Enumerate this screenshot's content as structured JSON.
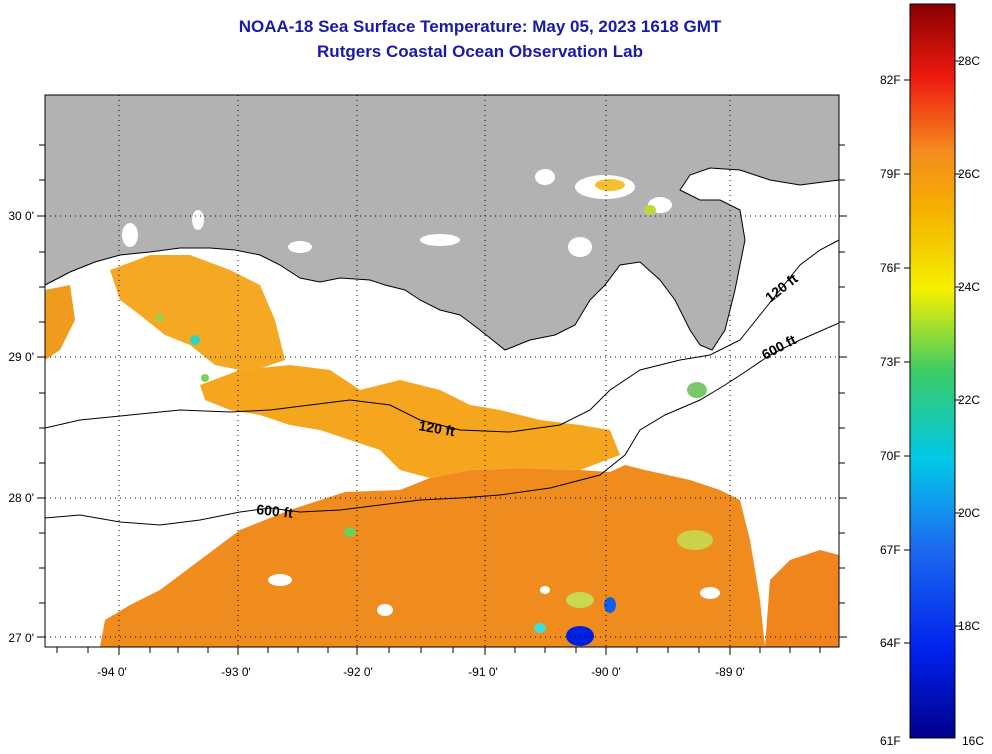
{
  "title": "NOAA-18 Sea Surface Temperature:  May 05, 2023 1618 GMT",
  "subtitle": "Rutgers Coastal Ocean Observation Lab",
  "lat_labels": [
    "30 0'",
    "29 0'",
    "28 0'",
    "27 0'"
  ],
  "lon_labels": [
    "-94 0'",
    "-93 0'",
    "-92 0'",
    "-91 0'",
    "-90 0'",
    "-89 0'"
  ],
  "contour_labels": [
    "120 ft",
    "120 ft",
    "600 ft",
    "600 ft"
  ],
  "colorbar": {
    "fahrenheit": [
      "82F",
      "79F",
      "76F",
      "73F",
      "70F",
      "67F",
      "64F",
      "61F"
    ],
    "celsius": [
      "28C",
      "26C",
      "24C",
      "22C",
      "20C",
      "18C",
      "16C"
    ],
    "range_celsius": [
      16,
      29
    ]
  },
  "colors": {
    "land": "#b2b2b2",
    "title": "#1a1aa8",
    "sst_main": "#f5961e"
  }
}
